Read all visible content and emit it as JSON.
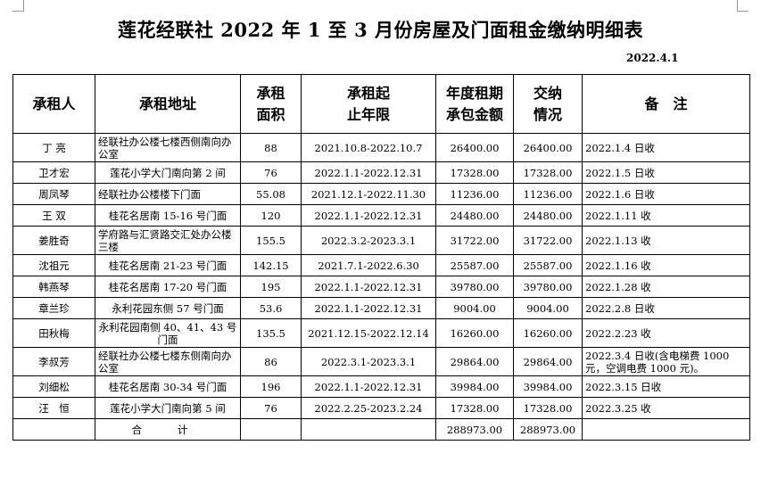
{
  "title": "莲花经联社 2022 年 1 至 3 月份房屋及门面租金缴纳明细表",
  "date": "2022.4.1",
  "headers": {
    "tenant": "承租人",
    "address": "承租地址",
    "area": [
      "承租",
      "面积"
    ],
    "period": [
      "承租起",
      "止年限"
    ],
    "rent": [
      "年度租期",
      "承包金额"
    ],
    "payment": [
      "交纳",
      "情况"
    ],
    "remark": "备　注"
  },
  "rows": [
    {
      "tenant": "丁 亮",
      "address": "经联社办公楼七楼西侧南向办公室",
      "area": "88",
      "period": "2021.10.8-2022.10.7",
      "rent": "26400.00",
      "paid": "26400.00",
      "remark": "2022.1.4 日收"
    },
    {
      "tenant": "卫才宏",
      "address": "莲花小学大门南向第 2 间",
      "area": "76",
      "period": "2022.1.1-2022.12.31",
      "rent": "17328.00",
      "paid": "17328.00",
      "remark": "2022.1.5 日收"
    },
    {
      "tenant": "周凤琴",
      "address": "经联社办公楼楼下门面",
      "area": "55.08",
      "period": "2021.12.1-2022.11.30",
      "rent": "11236.00",
      "paid": "11236.00",
      "remark": "2022.1.6 日收"
    },
    {
      "tenant": "王 双",
      "address": "桂花名居南 15-16 号门面",
      "area": "120",
      "period": "2022.1.1-2022.12.31",
      "rent": "24480.00",
      "paid": "24480.00",
      "remark": "2022.1.11 收"
    },
    {
      "tenant": "姜胜奇",
      "address": "学府路与汇贤路交汇处办公楼三楼",
      "area": "155.5",
      "period": "2022.3.2-2023.3.1",
      "rent": "31722.00",
      "paid": "31722.00",
      "remark": "2022.1.13 收"
    },
    {
      "tenant": "沈祖元",
      "address": "桂花名居南 21-23 号门面",
      "area": "142.15",
      "period": "2021.7.1-2022.6.30",
      "rent": "25587.00",
      "paid": "25587.00",
      "remark": "2022.1.16 收"
    },
    {
      "tenant": "韩燕琴",
      "address": "桂花名居南 17-20 号门面",
      "area": "195",
      "period": "2022.1.1-2022.12.31",
      "rent": "39780.00",
      "paid": "39780.00",
      "remark": "2022.1.28 收"
    },
    {
      "tenant": "章兰珍",
      "address": "永利花园东侧 57 号门面",
      "area": "53.6",
      "period": "2022.1.1-2022.12.31",
      "rent": "9004.00",
      "paid": "9004.00",
      "remark": "2022.2.8 日收"
    },
    {
      "tenant": "田秋梅",
      "address": "永利花园南侧 40、41、43 号门面",
      "area": "135.5",
      "period": "2021.12.15-2022.12.14",
      "rent": "16260.00",
      "paid": "16260.00",
      "remark": "2022.2.23 收"
    },
    {
      "tenant": "李叔芳",
      "address": "经联社办公楼七楼东侧南向办公室",
      "area": "86",
      "period": "2022.3.1-2023.3.1",
      "rent": "29864.00",
      "paid": "29864.00",
      "remark": "2022.3.4 日收(含电梯费 1000 元，空调电费 1000 元)。"
    },
    {
      "tenant": "刘细松",
      "address": "桂花名居南 30-34 号门面",
      "area": "196",
      "period": "2022.1.1-2022.12.31",
      "rent": "39984.00",
      "paid": "39984.00",
      "remark": "2022.3.15 日收"
    },
    {
      "tenant": "汪　恒",
      "address": "莲花小学大门南向第 5 间",
      "area": "76",
      "period": "2022.2.25-2023.2.24",
      "rent": "17328.00",
      "paid": "17328.00",
      "remark": "2022.3.25 收"
    }
  ],
  "total": {
    "label": "合 计",
    "rent": "288973.00",
    "paid": "288973.00"
  }
}
